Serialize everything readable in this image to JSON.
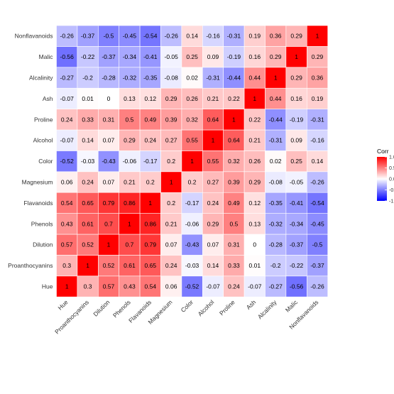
{
  "chart_data": {
    "type": "heatmap",
    "title": "",
    "xlabel": "",
    "ylabel": "",
    "variables": [
      "Hue",
      "Proanthocyanins",
      "Dilution",
      "Phenols",
      "Flavanoids",
      "Magnesium",
      "Color",
      "Alcohol",
      "Proline",
      "Ash",
      "Alcalinity",
      "Malic",
      "Nonflavanoids"
    ],
    "matrix": [
      [
        1,
        0.3,
        0.57,
        0.43,
        0.54,
        0.06,
        -0.52,
        -0.07,
        0.24,
        -0.07,
        -0.27,
        -0.56,
        -0.26
      ],
      [
        0.3,
        1,
        0.52,
        0.61,
        0.65,
        0.24,
        -0.03,
        0.14,
        0.33,
        0.01,
        -0.2,
        -0.22,
        -0.37
      ],
      [
        0.57,
        0.52,
        1,
        0.7,
        0.79,
        0.07,
        -0.43,
        0.07,
        0.31,
        0,
        -0.28,
        -0.37,
        -0.5
      ],
      [
        0.43,
        0.61,
        0.7,
        1,
        0.86,
        0.21,
        -0.06,
        0.29,
        0.5,
        0.13,
        -0.32,
        -0.34,
        -0.45
      ],
      [
        0.54,
        0.65,
        0.79,
        0.86,
        1,
        0.2,
        -0.17,
        0.24,
        0.49,
        0.12,
        -0.35,
        -0.41,
        -0.54
      ],
      [
        0.06,
        0.24,
        0.07,
        0.21,
        0.2,
        1,
        0.2,
        0.27,
        0.39,
        0.29,
        -0.08,
        -0.05,
        -0.26
      ],
      [
        -0.52,
        -0.03,
        -0.43,
        -0.06,
        -0.17,
        0.2,
        1,
        0.55,
        0.32,
        0.26,
        0.02,
        0.25,
        0.14
      ],
      [
        -0.07,
        0.14,
        0.07,
        0.29,
        0.24,
        0.27,
        0.55,
        1,
        0.64,
        0.21,
        -0.31,
        0.09,
        -0.16
      ],
      [
        0.24,
        0.33,
        0.31,
        0.5,
        0.49,
        0.39,
        0.32,
        0.64,
        1,
        0.22,
        -0.44,
        -0.19,
        -0.31
      ],
      [
        -0.07,
        0.01,
        0,
        0.13,
        0.12,
        0.29,
        0.26,
        0.21,
        0.22,
        1,
        0.44,
        0.16,
        0.19
      ],
      [
        -0.27,
        -0.2,
        -0.28,
        -0.32,
        -0.35,
        -0.08,
        0.02,
        -0.31,
        -0.44,
        0.44,
        1,
        0.29,
        0.36
      ],
      [
        -0.56,
        -0.22,
        -0.37,
        -0.34,
        -0.41,
        -0.05,
        0.25,
        0.09,
        -0.19,
        0.16,
        0.29,
        1,
        0.29
      ],
      [
        -0.26,
        -0.37,
        -0.5,
        -0.45,
        -0.54,
        -0.26,
        0.14,
        -0.16,
        -0.31,
        0.19,
        0.36,
        0.29,
        1
      ]
    ],
    "legend": {
      "title": "Corr",
      "ticks": [
        "1.0",
        "0.5",
        "0.0",
        "-0.5",
        "-1.0"
      ],
      "range": [
        -1,
        1
      ],
      "placement": "right"
    },
    "colors": {
      "high": "#ff0000",
      "mid": "#ffffff",
      "low": "#0000ff",
      "grid_line": "#ffffff",
      "text": "#000000"
    },
    "x_order": "left-to-right",
    "y_order": "bottom-to-top"
  }
}
